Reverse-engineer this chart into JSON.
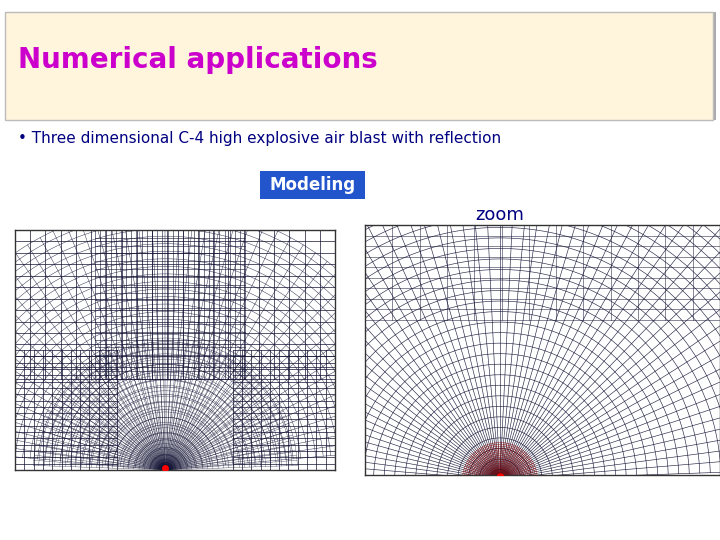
{
  "title": "Numerical applications",
  "title_color": "#CC00CC",
  "title_bg": "#FFF5DC",
  "title_shadow_color": "#AAAAAA",
  "bullet_text": "• Three dimensional C-4 high explosive air blast with reflection",
  "bullet_color": "#000080",
  "modeling_text": "Modeling",
  "modeling_bg": "#2255CC",
  "modeling_text_color": "#FFFFFF",
  "zoom_text": "zoom",
  "zoom_color": "#000080",
  "bg_color": "#FFFFFF",
  "mesh_color": "#111133",
  "title_fontsize": 20,
  "bullet_fontsize": 11,
  "modeling_fontsize": 12,
  "zoom_fontsize": 13
}
